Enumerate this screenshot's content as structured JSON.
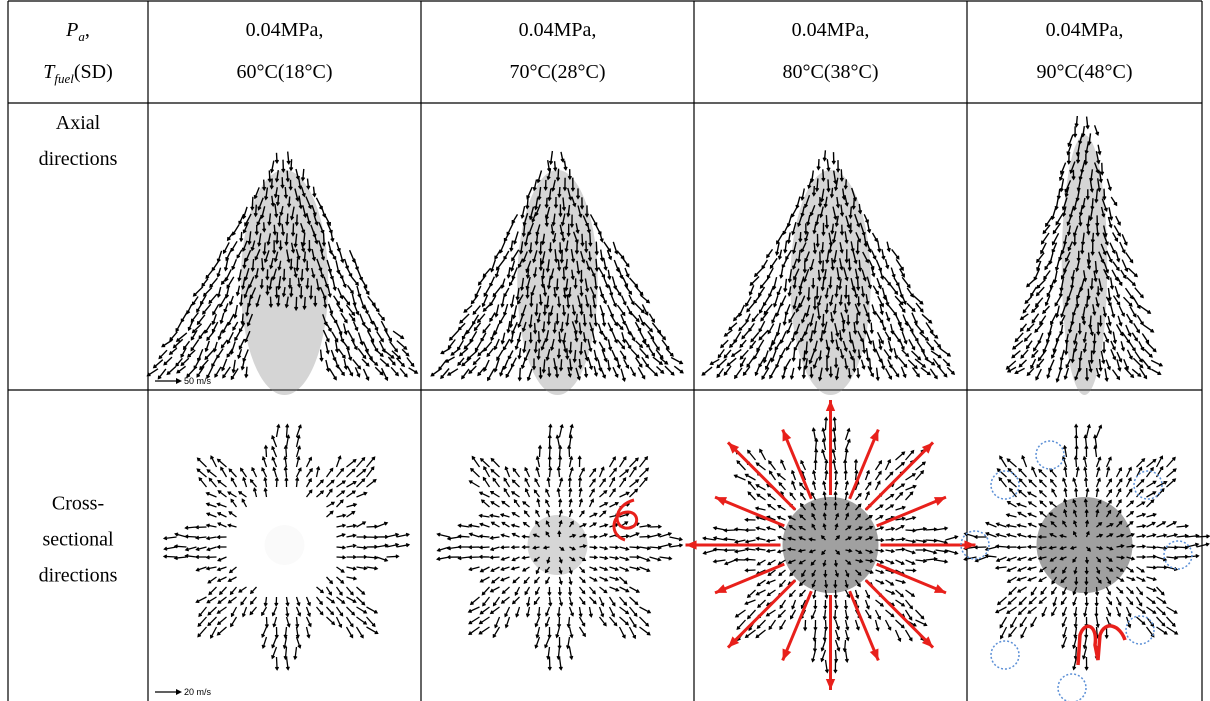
{
  "table": {
    "header": [
      {
        "lines": [
          {
            "main": "P",
            "sub": "a",
            "tail": ","
          },
          {
            "main": "T",
            "sub": "fuel",
            "tail": "(SD)"
          }
        ]
      },
      {
        "lines": [
          "0.04MPa,",
          "60°C(18°C)"
        ]
      },
      {
        "lines": [
          "0.04MPa,",
          "70°C(28°C)"
        ]
      },
      {
        "lines": [
          "0.04MPa,",
          "80°C(38°C)"
        ]
      },
      {
        "lines": [
          "0.04MPa,",
          "90°C(48°C)"
        ]
      }
    ],
    "rows": [
      {
        "label": [
          "Axial",
          "directions"
        ],
        "scale": "50 m/s"
      },
      {
        "label": [
          "Cross-",
          "sectional",
          "directions"
        ],
        "scale": "20 m/s"
      }
    ]
  }
}
